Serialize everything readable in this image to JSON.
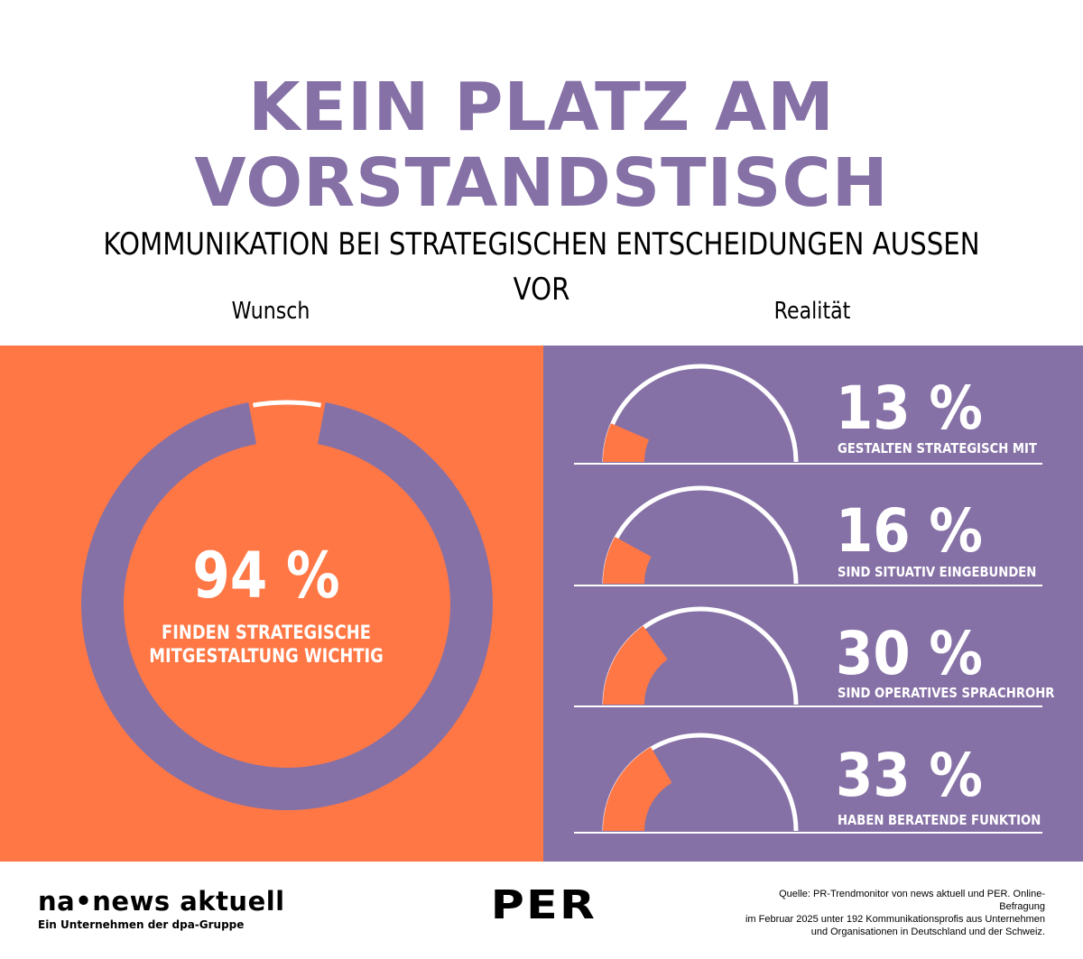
{
  "title_line1": "KEIN PLATZ AM",
  "title_line2": "VORSTANDSTISCH",
  "subtitle": "KOMMUNIKATION BEI STRATEGISCHEN ENTSCHEIDUNGEN AUSSEN VOR",
  "colors": {
    "orange": "#ff7745",
    "purple": "#8671a6",
    "white": "#ffffff",
    "black": "#000000"
  },
  "chart_data": [
    {
      "type": "pie",
      "group": "Wunsch",
      "value_label": "94 %",
      "label": "FINDEN STRATEGISCHE MITGESTALTUNG WICHTIG",
      "label_line1": "FINDEN STRATEGISCHE",
      "label_line2": "MITGESTALTUNG WICHTIG",
      "values": [
        94,
        6
      ]
    },
    {
      "type": "pie",
      "group": "Realität",
      "categories": [
        "GESTALTEN STRATEGISCH MIT",
        "SIND SITUATIV EINGEBUNDEN",
        "SIND OPERATIVES SPRACHROHR",
        "HABEN BERATENDE FUNKTION"
      ],
      "value_labels": [
        "13 %",
        "16 %",
        "30 %",
        "33 %"
      ],
      "values": [
        13,
        16,
        30,
        33
      ]
    }
  ],
  "footer": {
    "logo_na": "na•news aktuell",
    "logo_na_sub": "Ein Unternehmen der dpa-Gruppe",
    "logo_per": "PER",
    "source_line1": "Quelle: PR-Trendmonitor von news aktuell und PER. Online-Befragung",
    "source_line2": "im Februar 2025 unter 192 Kommunikationsprofis aus Unternehmen",
    "source_line3": "und Organisationen in Deutschland und der Schweiz."
  }
}
